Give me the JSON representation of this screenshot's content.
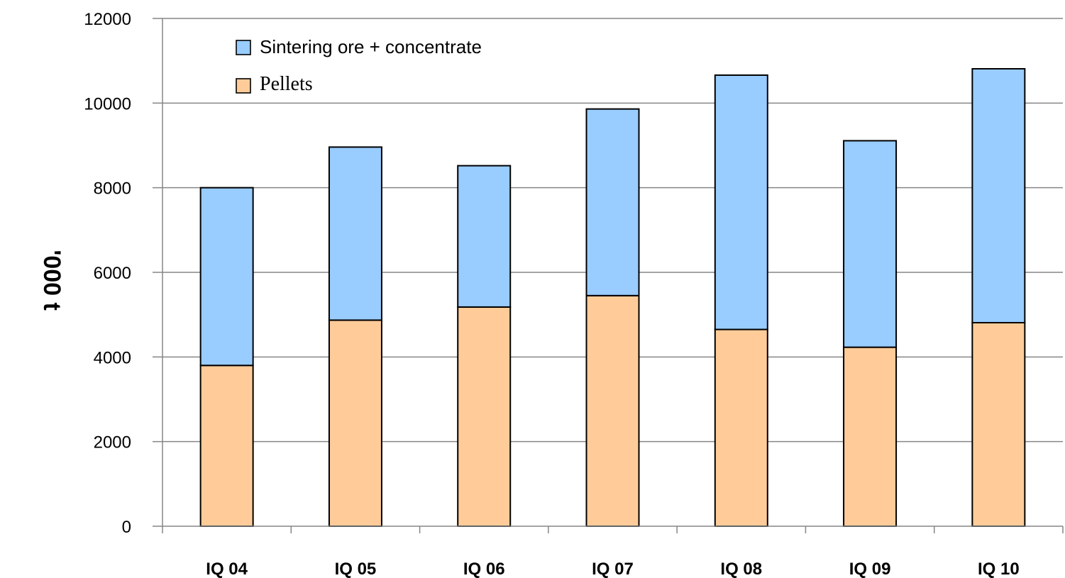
{
  "chart_data": {
    "type": "bar",
    "stacked": true,
    "title": "",
    "xlabel": "",
    "ylabel": "'000 t",
    "ylim": [
      0,
      12000
    ],
    "yticks": [
      0,
      2000,
      4000,
      6000,
      8000,
      10000,
      12000
    ],
    "grid": "horizontal",
    "legend": "top-left",
    "categories": [
      "IQ 04",
      "IQ 05",
      "IQ 06",
      "IQ 07",
      "IQ 08",
      "IQ 09",
      "IQ 10"
    ],
    "series": [
      {
        "name": "Pellets",
        "color": "#FFCC99",
        "values": [
          3800,
          4870,
          5180,
          5450,
          4650,
          4230,
          4810
        ]
      },
      {
        "name": "Sintering ore + concentrate",
        "color": "#99CCFF",
        "values": [
          4200,
          4090,
          3340,
          4410,
          6010,
          4880,
          6000
        ]
      }
    ],
    "legend_order": [
      "Sintering ore + concentrate",
      "Pellets"
    ]
  }
}
